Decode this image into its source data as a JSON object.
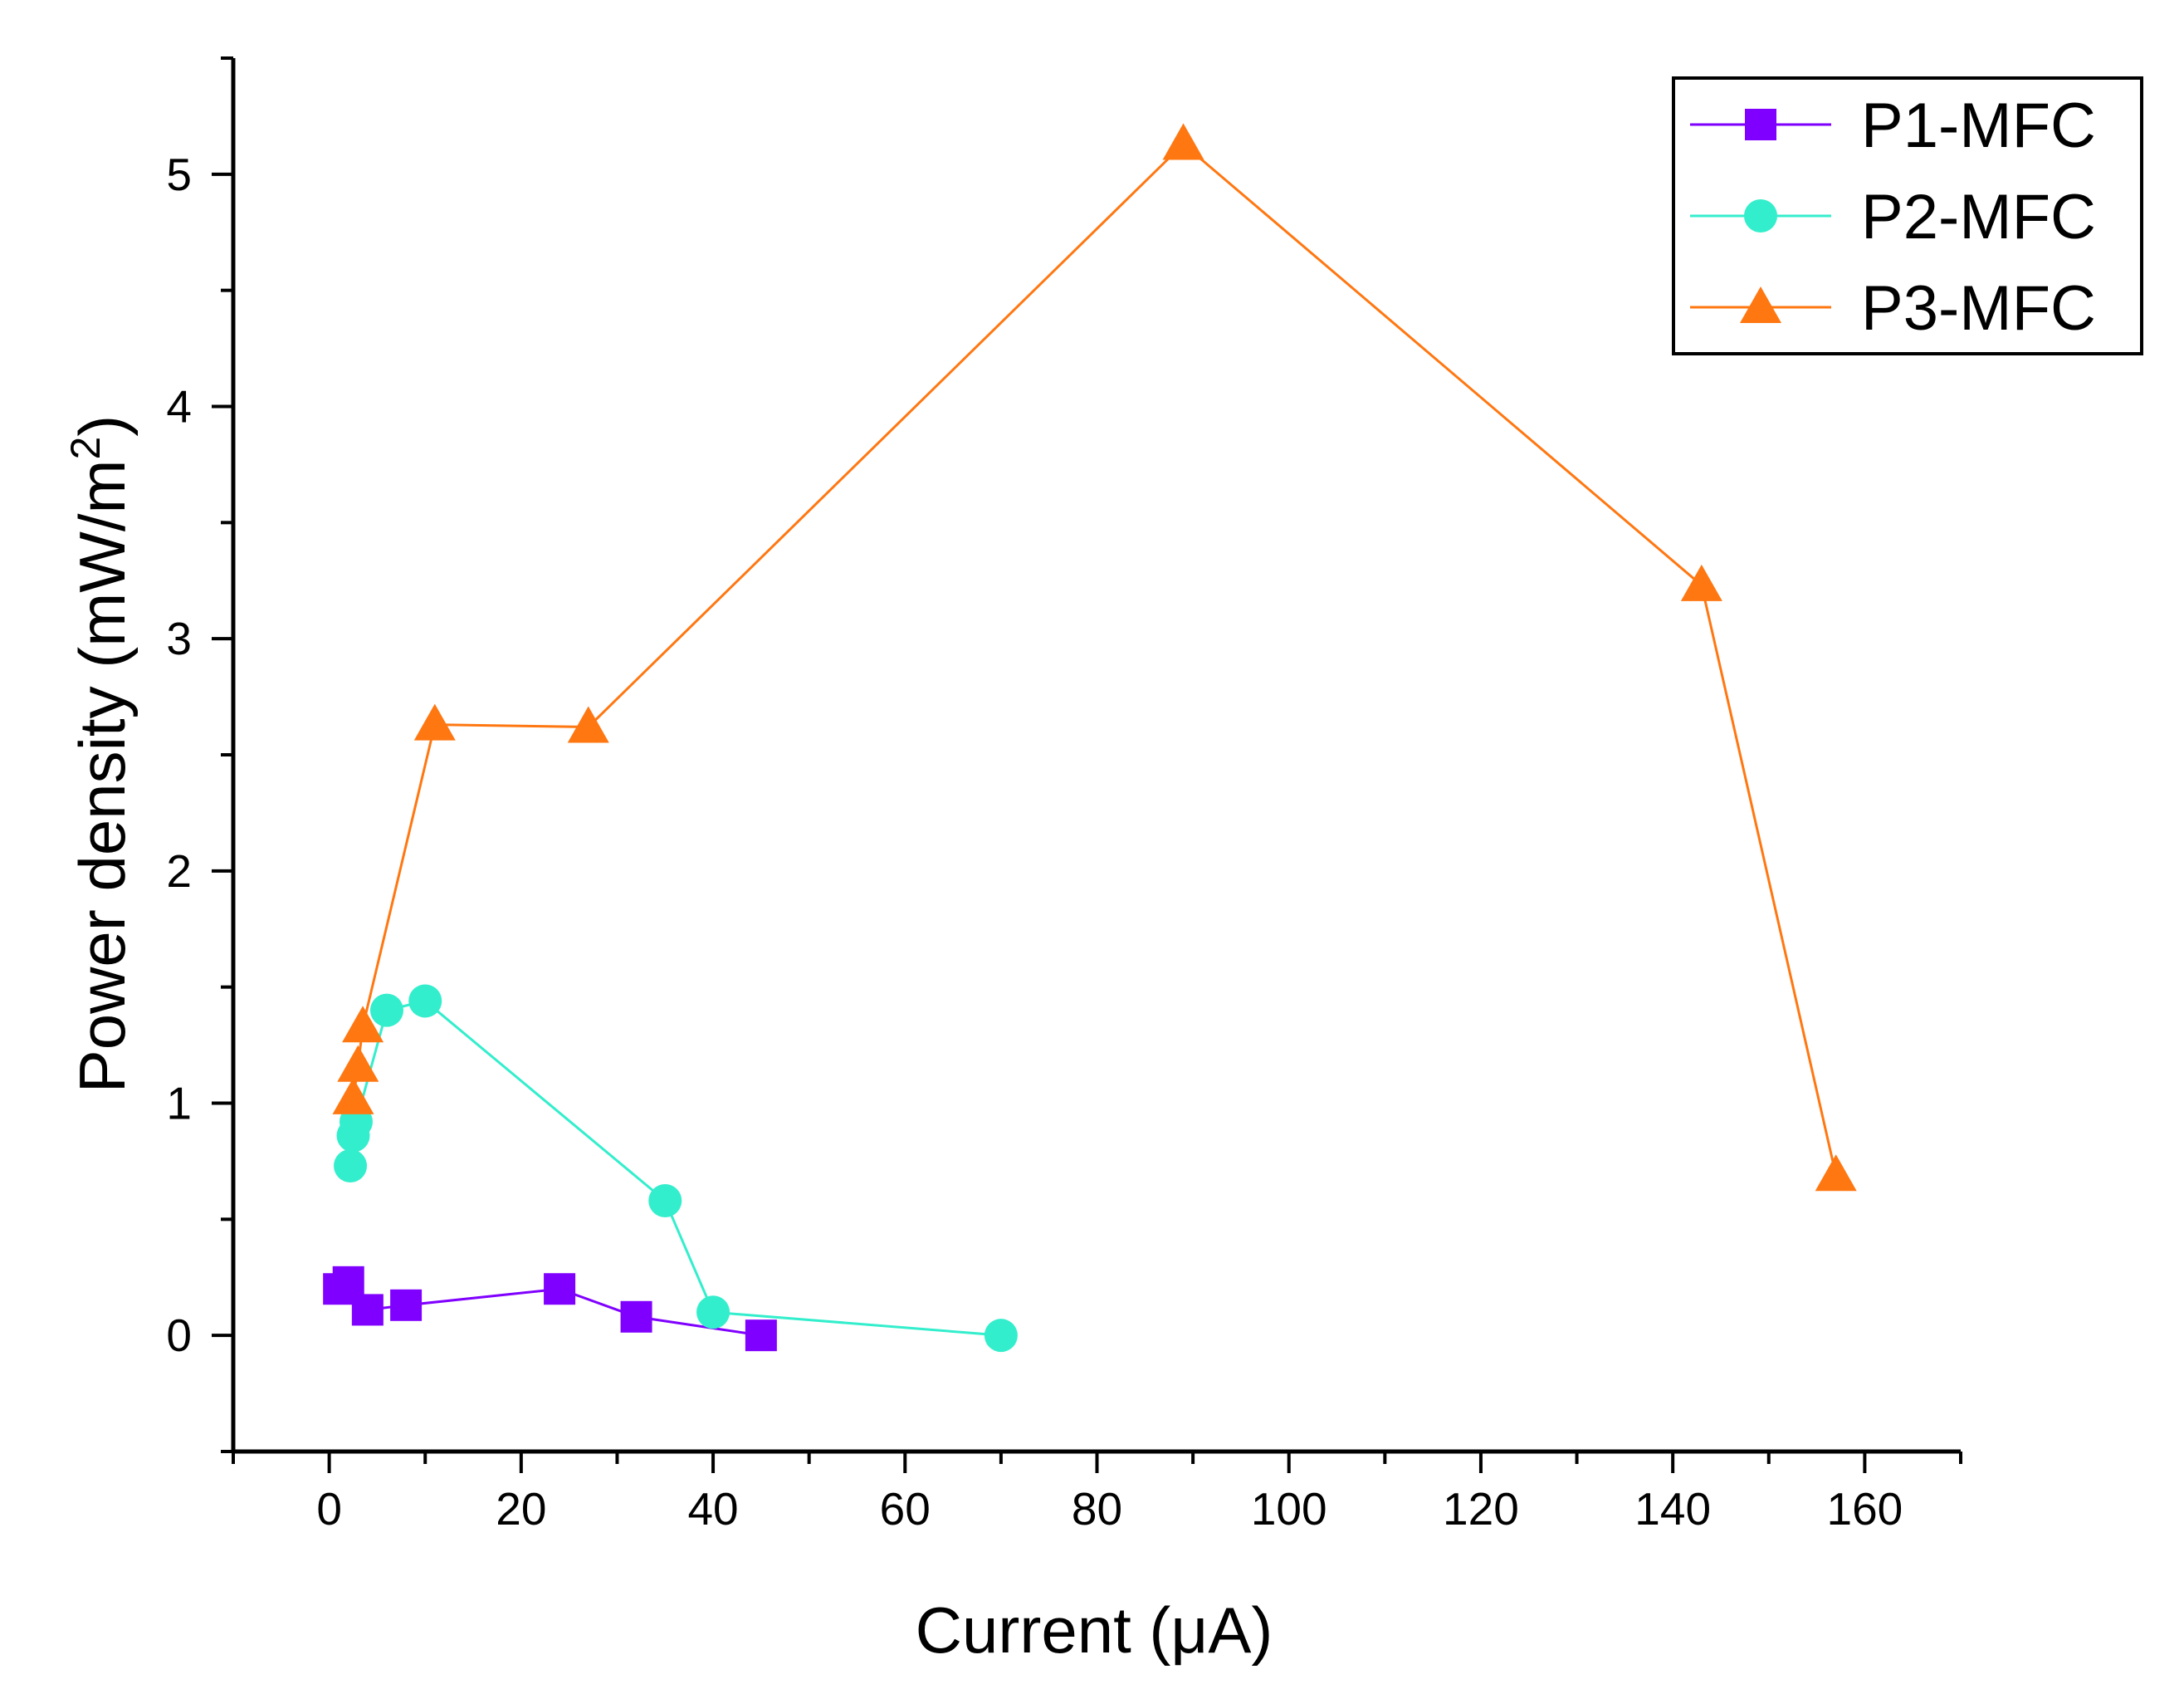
{
  "chart_data": {
    "type": "line",
    "title": "",
    "xlabel": "Current (μA)",
    "ylabel": "Power density (mW/m²)",
    "ylabel_main": "Power density (mW/m",
    "ylabel_sup": "2",
    "ylabel_close": ")",
    "xlim": [
      -10,
      170
    ],
    "ylim": [
      -0.5,
      5.5
    ],
    "xticks": [
      0,
      20,
      40,
      60,
      80,
      100,
      120,
      140,
      160
    ],
    "yticks": [
      0,
      1,
      2,
      3,
      4,
      5
    ],
    "legend_position": "top-right",
    "grid": false,
    "series": [
      {
        "name": "P1-MFC",
        "color": "#8000ff",
        "marker": "square",
        "x": [
          1,
          2,
          4,
          8,
          24,
          32,
          45
        ],
        "y": [
          0.2,
          0.23,
          0.11,
          0.13,
          0.2,
          0.08,
          0.0
        ]
      },
      {
        "name": "P2-MFC",
        "color": "#33eecc",
        "marker": "circle",
        "x": [
          2.2,
          2.5,
          2.8,
          6,
          10,
          35,
          40,
          70
        ],
        "y": [
          0.73,
          0.86,
          0.92,
          1.4,
          1.44,
          0.58,
          0.1,
          0.0
        ]
      },
      {
        "name": "P3-MFC",
        "color": "#ff7711",
        "marker": "triangle",
        "x": [
          2.5,
          3,
          3.5,
          11,
          27,
          89,
          143,
          157
        ],
        "y": [
          1.02,
          1.16,
          1.33,
          2.63,
          2.62,
          5.13,
          3.23,
          0.69
        ]
      }
    ]
  }
}
